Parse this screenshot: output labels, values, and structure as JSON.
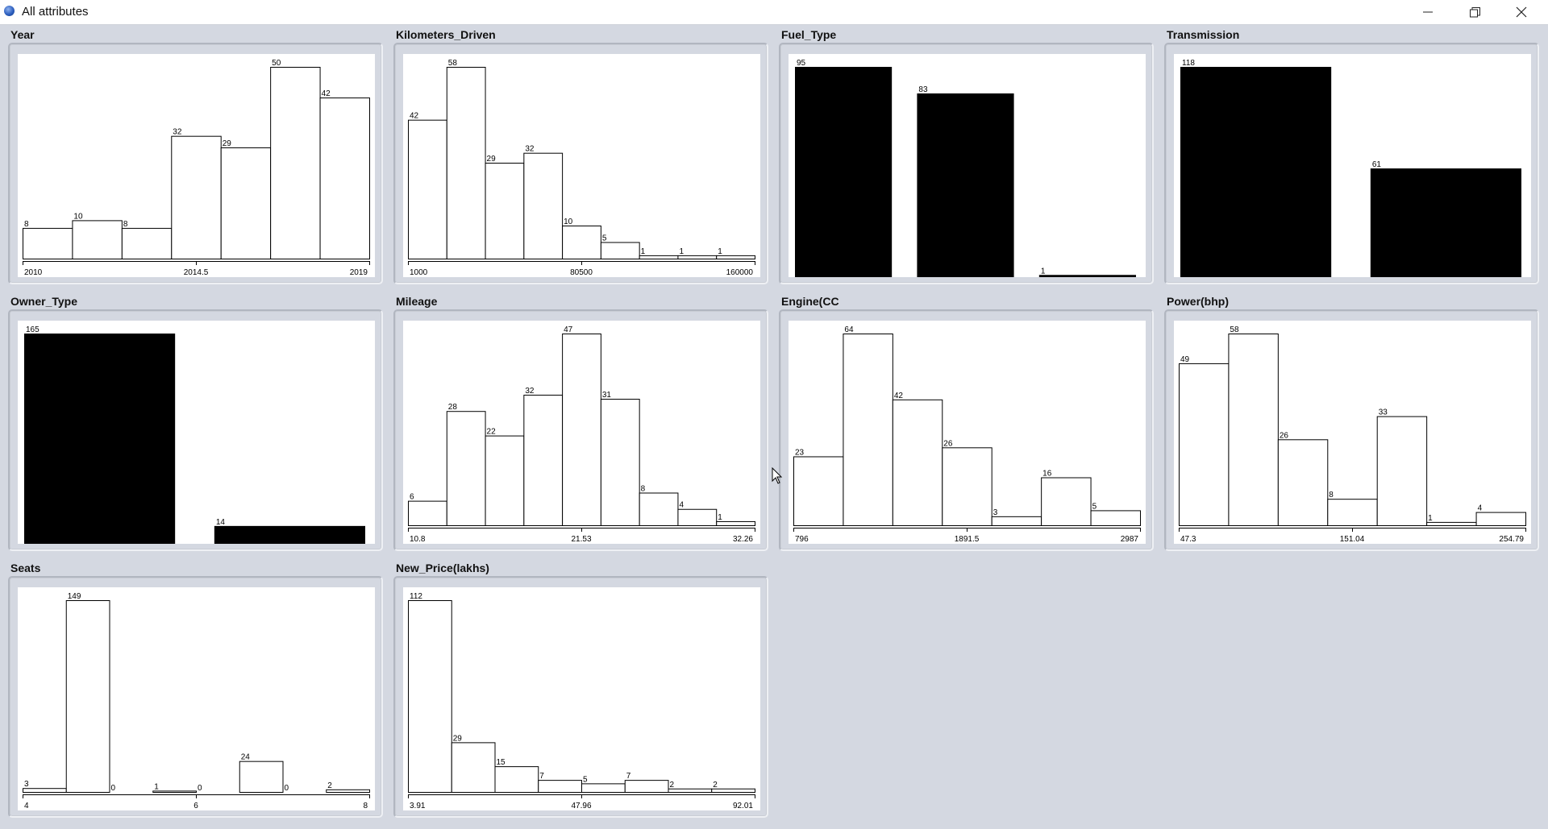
{
  "window": {
    "title": "All attributes",
    "controls": {
      "minimize": "minimize-icon",
      "maximize": "restore-icon",
      "close": "close-icon"
    }
  },
  "panels": [
    {
      "title": "Year"
    },
    {
      "title": "Kilometers_Driven"
    },
    {
      "title": "Fuel_Type"
    },
    {
      "title": "Transmission"
    },
    {
      "title": "Owner_Type"
    },
    {
      "title": "Mileage"
    },
    {
      "title": "Engine(CC"
    },
    {
      "title": "Power(bhp)"
    },
    {
      "title": "Seats"
    },
    {
      "title": "New_Price(lakhs)"
    }
  ],
  "chart_data": [
    {
      "type": "bar",
      "title": "Year",
      "style": "histogram",
      "fill": "#ffffff",
      "values": [
        8,
        10,
        8,
        32,
        29,
        50,
        42
      ],
      "ylim": [
        0,
        50
      ],
      "xticks": [
        "2010",
        "2014.5",
        "2019"
      ]
    },
    {
      "type": "bar",
      "title": "Kilometers_Driven",
      "style": "histogram",
      "fill": "#ffffff",
      "values": [
        42,
        58,
        29,
        32,
        10,
        5,
        1,
        1,
        1
      ],
      "ylim": [
        0,
        58
      ],
      "xticks": [
        "1000",
        "80500",
        "160000"
      ]
    },
    {
      "type": "bar",
      "title": "Fuel_Type",
      "style": "nominal",
      "fill": "#000000",
      "values": [
        95,
        83,
        1
      ],
      "ylim": [
        0,
        95
      ],
      "xticks": []
    },
    {
      "type": "bar",
      "title": "Transmission",
      "style": "nominal",
      "fill": "#000000",
      "values": [
        118,
        61
      ],
      "ylim": [
        0,
        118
      ],
      "xticks": []
    },
    {
      "type": "bar",
      "title": "Owner_Type",
      "style": "nominal",
      "fill": "#000000",
      "values": [
        165,
        14
      ],
      "ylim": [
        0,
        165
      ],
      "xticks": []
    },
    {
      "type": "bar",
      "title": "Mileage",
      "style": "histogram",
      "fill": "#ffffff",
      "values": [
        6,
        28,
        22,
        32,
        47,
        31,
        8,
        4,
        1
      ],
      "ylim": [
        0,
        47
      ],
      "xticks": [
        "10.8",
        "21.53",
        "32.26"
      ]
    },
    {
      "type": "bar",
      "title": "Engine(CC",
      "style": "histogram",
      "fill": "#ffffff",
      "values": [
        23,
        64,
        42,
        26,
        3,
        16,
        5
      ],
      "ylim": [
        0,
        64
      ],
      "xticks": [
        "796",
        "1891.5",
        "2987"
      ]
    },
    {
      "type": "bar",
      "title": "Power(bhp)",
      "style": "histogram",
      "fill": "#ffffff",
      "values": [
        49,
        58,
        26,
        8,
        33,
        1,
        4
      ],
      "ylim": [
        0,
        58
      ],
      "xticks": [
        "47.3",
        "151.04",
        "254.79"
      ]
    },
    {
      "type": "bar",
      "title": "Seats",
      "style": "histogram",
      "fill": "#ffffff",
      "values": [
        3,
        149,
        0,
        1,
        0,
        24,
        0,
        2
      ],
      "ylim": [
        0,
        149
      ],
      "xticks": [
        "4",
        "6",
        "8"
      ]
    },
    {
      "type": "bar",
      "title": "New_Price(lakhs)",
      "style": "histogram",
      "fill": "#ffffff",
      "values": [
        112,
        29,
        15,
        7,
        5,
        7,
        2,
        2
      ],
      "ylim": [
        0,
        112
      ],
      "xticks": [
        "3.91",
        "47.96",
        "92.01"
      ]
    }
  ]
}
